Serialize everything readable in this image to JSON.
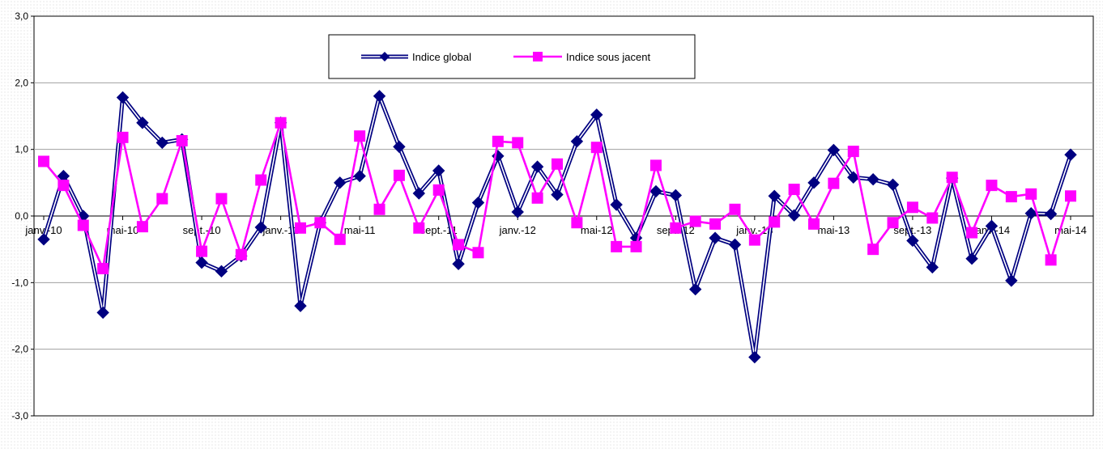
{
  "chart_data": {
    "type": "line",
    "title": "",
    "xlabel": "",
    "ylabel": "",
    "ylim": [
      -3,
      3
    ],
    "yticks": [
      "-3,0",
      "-2,0",
      "-1,0",
      "0,0",
      "1,0",
      "2,0",
      "3,0"
    ],
    "grid": true,
    "legend_position": "top-center",
    "x_tick_labels": [
      {
        "index": 0,
        "label": "janv.-10"
      },
      {
        "index": 4,
        "label": "mai-10"
      },
      {
        "index": 8,
        "label": "sept.-10"
      },
      {
        "index": 12,
        "label": "janv.-11"
      },
      {
        "index": 16,
        "label": "mai-11"
      },
      {
        "index": 20,
        "label": "sept.-11"
      },
      {
        "index": 24,
        "label": "janv.-12"
      },
      {
        "index": 28,
        "label": "mai-12"
      },
      {
        "index": 32,
        "label": "sept.-12"
      },
      {
        "index": 36,
        "label": "janv.-13"
      },
      {
        "index": 40,
        "label": "mai-13"
      },
      {
        "index": 44,
        "label": "sept.-13"
      },
      {
        "index": 48,
        "label": "janv.-14"
      },
      {
        "index": 52,
        "label": "mai-14"
      }
    ],
    "series": [
      {
        "name": "Indice global",
        "color": "#000080",
        "marker": "diamond",
        "values": [
          -0.35,
          0.6,
          0.0,
          -1.45,
          1.78,
          1.4,
          1.1,
          1.15,
          -0.7,
          -0.83,
          -0.6,
          -0.17,
          1.4,
          -1.35,
          -0.1,
          0.5,
          0.6,
          1.8,
          1.04,
          0.34,
          0.68,
          -0.72,
          0.2,
          0.9,
          0.06,
          0.74,
          0.32,
          1.12,
          1.52,
          0.17,
          -0.33,
          0.37,
          0.31,
          -1.1,
          -0.33,
          -0.43,
          -2.12,
          0.3,
          0.01,
          0.5,
          0.99,
          0.58,
          0.55,
          0.47,
          -0.37,
          -0.77,
          0.57,
          -0.64,
          -0.15,
          -0.97,
          0.04,
          0.03,
          0.92
        ]
      },
      {
        "name": "Indice sous jacent",
        "color": "#ff00ff",
        "marker": "square",
        "values": [
          0.82,
          0.46,
          -0.14,
          -0.79,
          1.18,
          -0.16,
          0.26,
          1.13,
          -0.53,
          0.26,
          -0.58,
          0.54,
          1.4,
          -0.18,
          -0.1,
          -0.35,
          1.2,
          0.1,
          0.61,
          -0.18,
          0.39,
          -0.43,
          -0.55,
          1.12,
          1.1,
          0.27,
          0.78,
          -0.1,
          1.03,
          -0.46,
          -0.46,
          0.76,
          -0.18,
          -0.08,
          -0.12,
          0.1,
          -0.36,
          -0.09,
          0.4,
          -0.12,
          0.49,
          0.97,
          -0.5,
          -0.1,
          0.13,
          -0.03,
          0.58,
          -0.25,
          0.46,
          0.29,
          0.33,
          -0.66,
          0.3
        ]
      }
    ]
  }
}
